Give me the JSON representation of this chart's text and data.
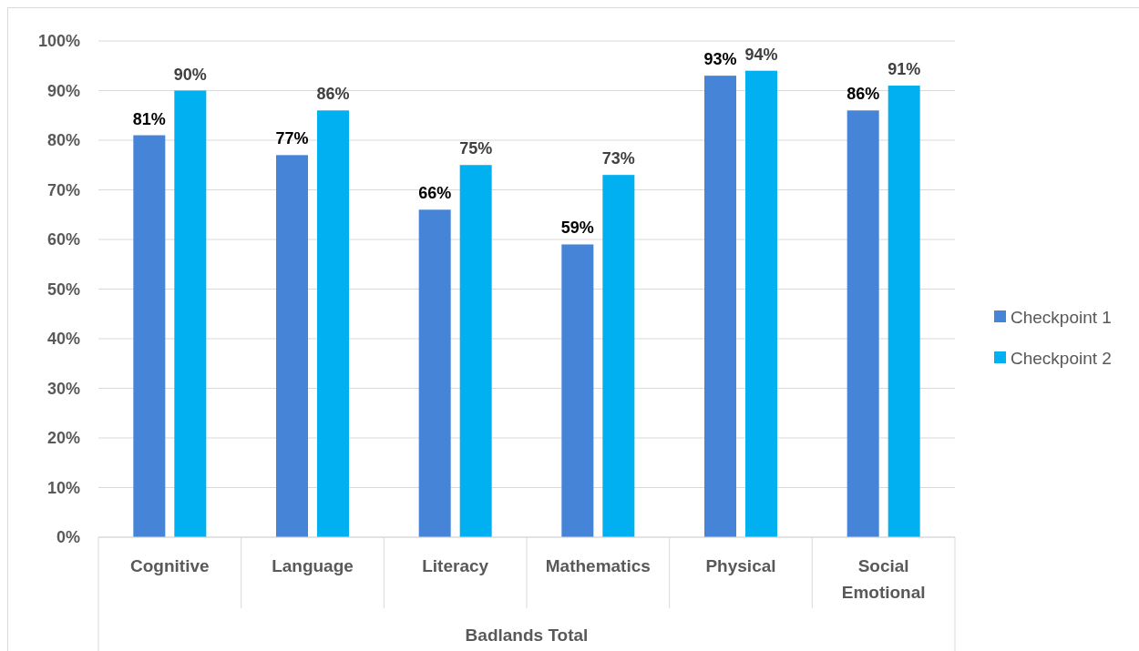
{
  "chart_data": {
    "type": "bar",
    "xlabel": "Badlands Total",
    "categories": [
      "Cognitive",
      "Language",
      "Literacy",
      "Mathematics",
      "Physical",
      "Social Emotional"
    ],
    "series": [
      {
        "name": "Checkpoint 1",
        "color": "#4584d6",
        "values": [
          81,
          77,
          66,
          59,
          93,
          86
        ],
        "value_labels": [
          "81%",
          "77%",
          "66%",
          "59%",
          "93%",
          "86%"
        ]
      },
      {
        "name": "Checkpoint 2",
        "color": "#00b0f0",
        "values": [
          90,
          86,
          75,
          73,
          94,
          91
        ],
        "value_labels": [
          "90%",
          "86%",
          "75%",
          "73%",
          "94%",
          "91%"
        ]
      }
    ],
    "ylim": [
      0,
      100
    ],
    "yticks": [
      {
        "value": 0,
        "label": "0%"
      },
      {
        "value": 10,
        "label": "10%"
      },
      {
        "value": 20,
        "label": "20%"
      },
      {
        "value": 30,
        "label": "30%"
      },
      {
        "value": 40,
        "label": "40%"
      },
      {
        "value": 50,
        "label": "50%"
      },
      {
        "value": 60,
        "label": "60%"
      },
      {
        "value": 70,
        "label": "70%"
      },
      {
        "value": 80,
        "label": "80%"
      },
      {
        "value": 90,
        "label": "90%"
      },
      {
        "value": 100,
        "label": "100%"
      }
    ],
    "grid": "y",
    "legend": "right"
  }
}
